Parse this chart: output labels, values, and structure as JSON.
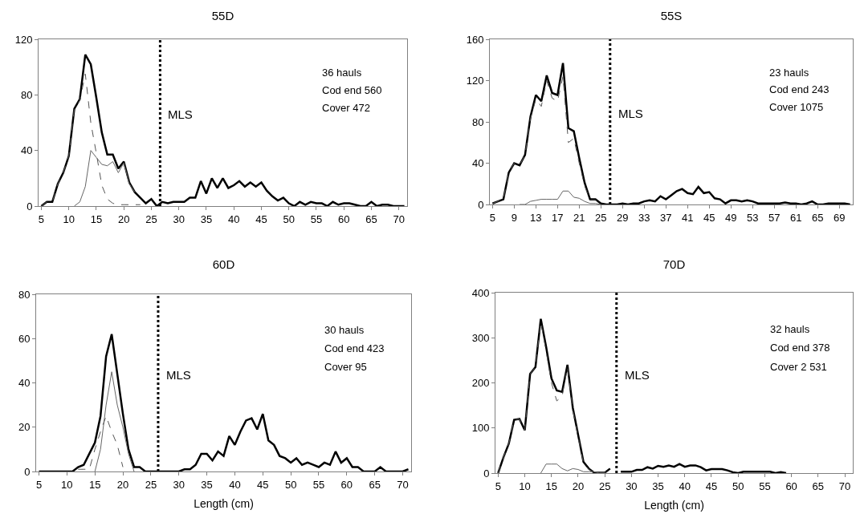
{
  "chart_data": [
    {
      "type": "line",
      "title": "55D",
      "xlim": [
        4.5,
        71.5
      ],
      "xticks": [
        5,
        10,
        15,
        20,
        25,
        30,
        35,
        40,
        45,
        50,
        55,
        60,
        65,
        70
      ],
      "ylim": [
        0,
        120
      ],
      "yticks": [
        0,
        40,
        80,
        120
      ],
      "grid": false,
      "annotations": [
        "36 hauls",
        "Cod end 560",
        "Cover 472"
      ],
      "ref_lines": [
        {
          "axis": "x",
          "value": 26.6,
          "label": "MLS",
          "line_style": "dotted",
          "color": "#000000"
        }
      ],
      "series": [
        {
          "color": "#000000",
          "line_style": "solid",
          "x": [
            5,
            6,
            7,
            8,
            9,
            10,
            11,
            12,
            13,
            14,
            15,
            16,
            17,
            18,
            19,
            20,
            21,
            22,
            23,
            24,
            25,
            26,
            27,
            28,
            29,
            30,
            31,
            32,
            33,
            34,
            35,
            36,
            37,
            38,
            39,
            40,
            41,
            42,
            43,
            44,
            45,
            46,
            47,
            48,
            49,
            50,
            51,
            52,
            53,
            54,
            55,
            56,
            57,
            58,
            59,
            60,
            61,
            62,
            63,
            64,
            65,
            66,
            67,
            68,
            69,
            70,
            71
          ],
          "values": [
            0,
            3,
            3,
            16,
            24,
            36,
            70,
            77,
            109,
            102,
            78,
            53,
            37,
            37,
            27,
            32,
            17,
            10,
            6,
            2,
            5,
            0,
            3,
            2,
            3,
            3,
            3,
            6,
            6,
            18,
            9,
            20,
            13,
            20,
            13,
            15,
            18,
            14,
            17,
            14,
            17,
            11,
            7,
            4,
            6,
            2,
            0,
            3,
            1,
            3,
            2,
            2,
            0,
            3,
            1,
            2,
            2,
            1,
            0,
            0,
            3,
            0,
            1,
            1,
            0,
            0,
            0
          ]
        },
        {
          "color": "#666666",
          "line_style": "solid",
          "x": [
            11,
            12,
            13,
            14,
            15,
            16,
            17,
            18,
            19,
            20,
            21,
            22
          ],
          "values": [
            0,
            3,
            14,
            40,
            35,
            30,
            29,
            32,
            24,
            31,
            16,
            10
          ]
        },
        {
          "color": "#555555",
          "line_style": "dashed",
          "x": [
            5,
            6,
            7,
            8,
            9,
            10,
            11,
            12,
            13,
            14,
            15,
            16,
            17,
            18,
            19,
            20,
            21,
            22,
            23
          ],
          "values": [
            0,
            3,
            3,
            16,
            24,
            36,
            70,
            76,
            95,
            60,
            38,
            15,
            5,
            2,
            1,
            1,
            1,
            1,
            1
          ]
        }
      ]
    },
    {
      "type": "line",
      "title": "55S",
      "xlim": [
        4.5,
        71.5
      ],
      "xticks": [
        5,
        9,
        13,
        17,
        21,
        25,
        29,
        33,
        37,
        41,
        45,
        49,
        53,
        57,
        61,
        65,
        69
      ],
      "ylim": [
        0,
        160
      ],
      "yticks": [
        0,
        40,
        80,
        120,
        160
      ],
      "grid": false,
      "annotations": [
        "23 hauls",
        "Cod end 243",
        "Cover 1075"
      ],
      "ref_lines": [
        {
          "axis": "x",
          "value": 26.7,
          "label": "MLS",
          "line_style": "dotted",
          "color": "#000000"
        }
      ],
      "series": [
        {
          "color": "#000000",
          "line_style": "solid",
          "x": [
            5,
            6,
            7,
            8,
            9,
            10,
            11,
            12,
            13,
            14,
            15,
            16,
            17,
            18,
            19,
            20,
            21,
            22,
            23,
            24,
            25,
            26,
            27,
            28,
            29,
            30,
            31,
            32,
            33,
            34,
            35,
            36,
            37,
            38,
            39,
            40,
            41,
            42,
            43,
            44,
            45,
            46,
            47,
            48,
            49,
            50,
            51,
            52,
            53,
            54,
            55,
            56,
            57,
            58,
            59,
            60,
            61,
            62,
            63,
            64,
            65,
            66,
            67,
            68,
            69,
            70,
            71
          ],
          "values": [
            1,
            3,
            5,
            31,
            40,
            38,
            48,
            85,
            106,
            100,
            125,
            108,
            106,
            137,
            74,
            71,
            45,
            21,
            5,
            5,
            1,
            0,
            0,
            0,
            1,
            0,
            1,
            1,
            3,
            4,
            3,
            8,
            5,
            9,
            13,
            15,
            11,
            10,
            17,
            11,
            12,
            6,
            5,
            1,
            4,
            4,
            3,
            4,
            3,
            1,
            1,
            1,
            1,
            1,
            2,
            1,
            1,
            0,
            1,
            3,
            0,
            0,
            1,
            1,
            1,
            1,
            0
          ]
        },
        {
          "color": "#666666",
          "line_style": "solid",
          "x": [
            10,
            11,
            12,
            13,
            14,
            15,
            16,
            17,
            18,
            19,
            20,
            21,
            22,
            23,
            24,
            25
          ],
          "values": [
            0,
            0,
            3,
            4,
            5,
            5,
            5,
            5,
            13,
            13,
            7,
            6,
            3,
            1,
            1,
            0
          ]
        },
        {
          "color": "#555555",
          "line_style": "dashed",
          "x": [
            5,
            6,
            7,
            8,
            9,
            10,
            11,
            12,
            13,
            14,
            15,
            16,
            17,
            18,
            19,
            20,
            21,
            22,
            23,
            24,
            25
          ],
          "values": [
            1,
            3,
            5,
            31,
            40,
            38,
            48,
            83,
            102,
            95,
            120,
            103,
            100,
            124,
            60,
            64,
            40,
            18,
            4,
            4,
            1
          ]
        }
      ]
    },
    {
      "type": "line",
      "title": "60D",
      "xlabel": "Length (cm)",
      "xlim": [
        4.5,
        71.5
      ],
      "xticks": [
        5,
        10,
        15,
        20,
        25,
        30,
        35,
        40,
        45,
        50,
        55,
        60,
        65,
        70
      ],
      "ylim": [
        0,
        80
      ],
      "yticks": [
        0,
        20,
        40,
        60,
        80
      ],
      "grid": false,
      "annotations": [
        "30 hauls",
        "Cod end 423",
        "Cover 95"
      ],
      "ref_lines": [
        {
          "axis": "x",
          "value": 26.3,
          "label": "MLS",
          "line_style": "dotted",
          "color": "#000000"
        }
      ],
      "series": [
        {
          "color": "#000000",
          "line_style": "solid",
          "x": [
            5,
            6,
            7,
            8,
            9,
            10,
            11,
            12,
            13,
            14,
            15,
            16,
            17,
            18,
            19,
            20,
            21,
            22,
            23,
            24,
            25,
            26,
            27,
            28,
            29,
            30,
            31,
            32,
            33,
            34,
            35,
            36,
            37,
            38,
            39,
            40,
            41,
            42,
            43,
            44,
            45,
            46,
            47,
            48,
            49,
            50,
            51,
            52,
            53,
            54,
            55,
            56,
            57,
            58,
            59,
            60,
            61,
            62,
            63,
            64,
            65,
            66,
            67,
            68,
            69,
            70,
            71
          ],
          "values": [
            0,
            0,
            0,
            0,
            0,
            0,
            0,
            2,
            3,
            8,
            13,
            25,
            52,
            62,
            44,
            26,
            10,
            2,
            2,
            0,
            0,
            0,
            0,
            0,
            0,
            0,
            1,
            1,
            3,
            8,
            8,
            5,
            9,
            7,
            16,
            12,
            18,
            23,
            24,
            19,
            26,
            14,
            12,
            7,
            6,
            4,
            6,
            3,
            4,
            3,
            2,
            4,
            3,
            9,
            4,
            6,
            2,
            2,
            0,
            0,
            0,
            2,
            0,
            0,
            0,
            0,
            1
          ]
        },
        {
          "color": "#666666",
          "line_style": "solid",
          "x": [
            15,
            16,
            17,
            18,
            19,
            20,
            21,
            22
          ],
          "values": [
            0,
            10,
            30,
            45,
            30,
            20,
            8,
            0
          ]
        },
        {
          "color": "#555555",
          "line_style": "dashed",
          "x": [
            12,
            13,
            14,
            15,
            16,
            17,
            18,
            19,
            20
          ],
          "values": [
            1,
            1,
            1,
            10,
            18,
            25,
            18,
            12,
            2
          ]
        }
      ]
    },
    {
      "type": "line",
      "title": "70D",
      "xlabel": "Length (cm)",
      "xlim": [
        4.5,
        71.5
      ],
      "xticks": [
        5,
        10,
        15,
        20,
        25,
        30,
        35,
        40,
        45,
        50,
        55,
        60,
        65,
        70
      ],
      "ylim": [
        0,
        400
      ],
      "yticks": [
        0,
        100,
        200,
        300,
        400
      ],
      "grid": false,
      "annotations": [
        "32 hauls",
        "Cod end 378",
        "Cover 2 531"
      ],
      "ref_lines": [
        {
          "axis": "x",
          "value": 27.2,
          "label": "MLS",
          "line_style": "dotted",
          "color": "#000000"
        }
      ],
      "series": [
        {
          "color": "#000000",
          "line_style": "solid",
          "x": [
            5,
            6,
            7,
            8,
            9,
            10,
            11,
            12,
            13,
            14,
            15,
            16,
            17,
            18,
            19,
            20,
            21,
            22,
            23,
            24,
            25,
            26,
            27,
            28,
            29,
            30,
            31,
            32,
            33,
            34,
            35,
            36,
            37,
            38,
            39,
            40,
            41,
            42,
            43,
            44,
            45,
            46,
            47,
            48,
            49,
            50,
            51,
            52,
            53,
            54,
            55,
            56,
            57,
            58,
            59
          ],
          "values": [
            0,
            35,
            65,
            118,
            120,
            95,
            220,
            235,
            342,
            280,
            210,
            183,
            180,
            240,
            145,
            85,
            25,
            10,
            1,
            1,
            1,
            10,
            null,
            3,
            3,
            3,
            7,
            7,
            13,
            10,
            16,
            14,
            17,
            14,
            20,
            14,
            17,
            17,
            13,
            6,
            9,
            9,
            9,
            6,
            2,
            0,
            3,
            3,
            3,
            3,
            3,
            3,
            0,
            2,
            0
          ]
        },
        {
          "color": "#666666",
          "line_style": "solid",
          "x": [
            13,
            14,
            15,
            16,
            17,
            18,
            19,
            20,
            21,
            22,
            23,
            24
          ],
          "values": [
            0,
            20,
            20,
            20,
            10,
            5,
            10,
            8,
            3,
            3,
            3,
            0
          ]
        },
        {
          "color": "#555555",
          "line_style": "dashed",
          "x": [
            5,
            6,
            7,
            8,
            9,
            10,
            11,
            12,
            13,
            14,
            15,
            16,
            17,
            18,
            19,
            20,
            21,
            22,
            23,
            24,
            25,
            26
          ],
          "values": [
            0,
            35,
            65,
            118,
            120,
            95,
            220,
            235,
            335,
            270,
            200,
            160,
            170,
            235,
            140,
            80,
            22,
            8,
            1,
            1,
            1,
            10
          ]
        }
      ]
    }
  ]
}
